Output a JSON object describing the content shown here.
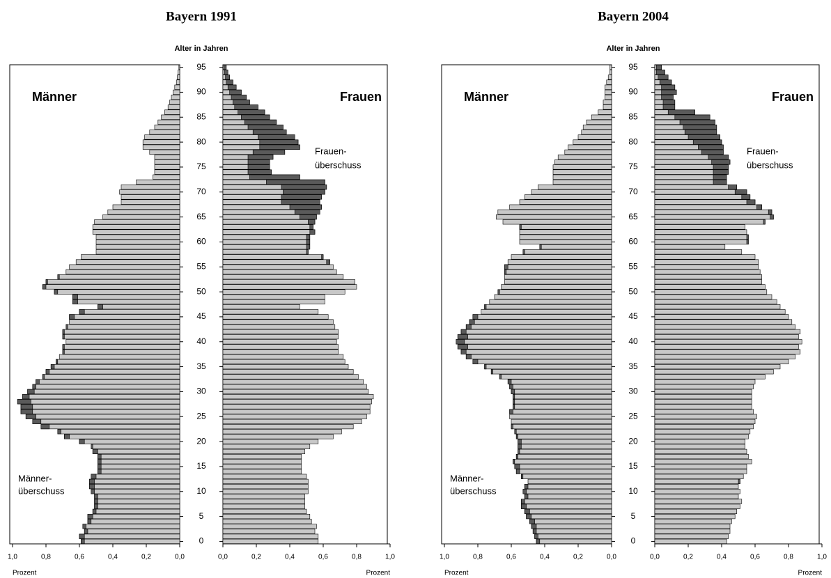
{
  "chart_data": [
    {
      "type": "pyramid",
      "title": "Bayern 1991",
      "ylabel": "Alter in Jahren",
      "xlabel": "Prozent",
      "annotations": {
        "left": [
          "Männer-",
          "überschuss"
        ],
        "right": [
          "Frauen-",
          "überschuss"
        ]
      },
      "xlim": [
        0,
        1
      ],
      "xticks": [
        {
          "value": 0,
          "label": "0,0"
        },
        {
          "value": 0.2,
          "label": "0,2"
        },
        {
          "value": 0.4,
          "label": "0,4"
        },
        {
          "value": 0.6,
          "label": "0,6"
        },
        {
          "value": 0.8,
          "label": "0,8"
        },
        {
          "value": 1,
          "label": "1,0"
        }
      ],
      "ylim": [
        -0.5,
        95.5
      ],
      "yticks": [
        0,
        5,
        10,
        15,
        20,
        25,
        30,
        35,
        40,
        45,
        50,
        55,
        60,
        65,
        70,
        75,
        80,
        85,
        90,
        95
      ],
      "y": [
        0,
        1,
        2,
        3,
        4,
        5,
        6,
        7,
        8,
        9,
        10,
        11,
        12,
        13,
        14,
        15,
        16,
        17,
        18,
        19,
        20,
        21,
        22,
        23,
        24,
        25,
        26,
        27,
        28,
        29,
        30,
        31,
        32,
        33,
        34,
        35,
        36,
        37,
        38,
        39,
        40,
        41,
        42,
        43,
        44,
        45,
        46,
        47,
        48,
        49,
        50,
        51,
        52,
        53,
        54,
        55,
        56,
        57,
        58,
        59,
        60,
        61,
        62,
        63,
        64,
        65,
        66,
        67,
        68,
        69,
        70,
        71,
        72,
        73,
        74,
        75,
        76,
        77,
        78,
        79,
        80,
        81,
        82,
        83,
        84,
        85,
        86,
        87,
        88,
        89,
        90,
        91,
        92,
        93,
        94,
        95
      ],
      "light_color": "#c8c8c8",
      "excess_color": "#5a5a5a",
      "series": [
        {
          "name": "Männer",
          "side": "left",
          "values": [
            0.59,
            0.6,
            0.57,
            0.58,
            0.55,
            0.55,
            0.52,
            0.51,
            0.51,
            0.51,
            0.53,
            0.54,
            0.54,
            0.53,
            0.49,
            0.49,
            0.49,
            0.49,
            0.52,
            0.53,
            0.6,
            0.69,
            0.73,
            0.83,
            0.88,
            0.92,
            0.95,
            0.95,
            0.97,
            0.94,
            0.91,
            0.88,
            0.86,
            0.82,
            0.8,
            0.77,
            0.74,
            0.72,
            0.7,
            0.7,
            0.68,
            0.7,
            0.7,
            0.68,
            0.66,
            0.66,
            0.6,
            0.49,
            0.64,
            0.64,
            0.75,
            0.82,
            0.8,
            0.73,
            0.68,
            0.66,
            0.62,
            0.59,
            0.5,
            0.5,
            0.5,
            0.5,
            0.52,
            0.52,
            0.51,
            0.46,
            0.43,
            0.4,
            0.35,
            0.35,
            0.36,
            0.35,
            0.26,
            0.16,
            0.15,
            0.15,
            0.15,
            0.15,
            0.18,
            0.22,
            0.22,
            0.21,
            0.18,
            0.15,
            0.13,
            0.11,
            0.09,
            0.07,
            0.06,
            0.05,
            0.04,
            0.03,
            0.02,
            0.015,
            0.01,
            0.005
          ]
        },
        {
          "name": "Frauen",
          "side": "right",
          "values": [
            0.57,
            0.57,
            0.55,
            0.56,
            0.53,
            0.52,
            0.5,
            0.49,
            0.49,
            0.49,
            0.51,
            0.51,
            0.51,
            0.5,
            0.47,
            0.47,
            0.47,
            0.47,
            0.49,
            0.52,
            0.57,
            0.66,
            0.71,
            0.78,
            0.83,
            0.86,
            0.88,
            0.88,
            0.89,
            0.9,
            0.87,
            0.86,
            0.84,
            0.81,
            0.78,
            0.75,
            0.73,
            0.72,
            0.69,
            0.69,
            0.68,
            0.69,
            0.69,
            0.67,
            0.66,
            0.63,
            0.57,
            0.46,
            0.61,
            0.61,
            0.73,
            0.8,
            0.79,
            0.72,
            0.68,
            0.66,
            0.64,
            0.6,
            0.51,
            0.52,
            0.52,
            0.52,
            0.55,
            0.54,
            0.55,
            0.56,
            0.58,
            0.59,
            0.58,
            0.59,
            0.61,
            0.62,
            0.61,
            0.46,
            0.29,
            0.28,
            0.28,
            0.3,
            0.37,
            0.46,
            0.45,
            0.43,
            0.38,
            0.36,
            0.32,
            0.28,
            0.25,
            0.21,
            0.16,
            0.14,
            0.11,
            0.08,
            0.06,
            0.04,
            0.03,
            0.02
          ]
        }
      ]
    },
    {
      "type": "pyramid",
      "title": "Bayern 2004",
      "ylabel": "Alter in Jahren",
      "xlabel": "Prozent",
      "annotations": {
        "left": [
          "Männer-",
          "überschuss"
        ],
        "right": [
          "Frauen-",
          "überschuss"
        ]
      },
      "xlim": [
        0,
        1
      ],
      "xticks": [
        {
          "value": 0,
          "label": "0,0"
        },
        {
          "value": 0.2,
          "label": "0,2"
        },
        {
          "value": 0.4,
          "label": "0,4"
        },
        {
          "value": 0.6,
          "label": "0,6"
        },
        {
          "value": 0.8,
          "label": "0,8"
        },
        {
          "value": 1,
          "label": "1,0"
        }
      ],
      "ylim": [
        -0.5,
        95.5
      ],
      "yticks": [
        0,
        5,
        10,
        15,
        20,
        25,
        30,
        35,
        40,
        45,
        50,
        55,
        60,
        65,
        70,
        75,
        80,
        85,
        90,
        95
      ],
      "y": [
        0,
        1,
        2,
        3,
        4,
        5,
        6,
        7,
        8,
        9,
        10,
        11,
        12,
        13,
        14,
        15,
        16,
        17,
        18,
        19,
        20,
        21,
        22,
        23,
        24,
        25,
        26,
        27,
        28,
        29,
        30,
        31,
        32,
        33,
        34,
        35,
        36,
        37,
        38,
        39,
        40,
        41,
        42,
        43,
        44,
        45,
        46,
        47,
        48,
        49,
        50,
        51,
        52,
        53,
        54,
        55,
        56,
        57,
        58,
        59,
        60,
        61,
        62,
        63,
        64,
        65,
        66,
        67,
        68,
        69,
        70,
        71,
        72,
        73,
        74,
        75,
        76,
        77,
        78,
        79,
        80,
        81,
        82,
        83,
        84,
        85,
        86,
        87,
        88,
        89,
        90,
        91,
        92,
        93,
        94,
        95
      ],
      "light_color": "#c8c8c8",
      "excess_color": "#5a5a5a",
      "series": [
        {
          "name": "Männer",
          "side": "left",
          "values": [
            0.45,
            0.46,
            0.47,
            0.48,
            0.49,
            0.51,
            0.52,
            0.54,
            0.54,
            0.52,
            0.53,
            0.52,
            0.5,
            0.54,
            0.57,
            0.58,
            0.59,
            0.57,
            0.56,
            0.56,
            0.56,
            0.57,
            0.58,
            0.6,
            0.6,
            0.61,
            0.61,
            0.59,
            0.59,
            0.59,
            0.6,
            0.61,
            0.62,
            0.67,
            0.72,
            0.76,
            0.83,
            0.87,
            0.9,
            0.92,
            0.93,
            0.92,
            0.9,
            0.87,
            0.85,
            0.83,
            0.78,
            0.76,
            0.73,
            0.7,
            0.68,
            0.66,
            0.64,
            0.64,
            0.64,
            0.64,
            0.62,
            0.6,
            0.53,
            0.43,
            0.55,
            0.55,
            0.55,
            0.55,
            0.65,
            0.69,
            0.68,
            0.61,
            0.55,
            0.52,
            0.48,
            0.44,
            0.35,
            0.35,
            0.35,
            0.35,
            0.34,
            0.32,
            0.28,
            0.26,
            0.23,
            0.2,
            0.18,
            0.17,
            0.15,
            0.12,
            0.08,
            0.05,
            0.05,
            0.04,
            0.04,
            0.04,
            0.03,
            0.02,
            0.01,
            0.01
          ]
        },
        {
          "name": "Frauen",
          "side": "right",
          "values": [
            0.43,
            0.44,
            0.45,
            0.45,
            0.46,
            0.48,
            0.49,
            0.51,
            0.52,
            0.5,
            0.51,
            0.5,
            0.51,
            0.53,
            0.55,
            0.55,
            0.58,
            0.56,
            0.55,
            0.54,
            0.54,
            0.56,
            0.57,
            0.59,
            0.6,
            0.61,
            0.59,
            0.58,
            0.58,
            0.58,
            0.58,
            0.59,
            0.6,
            0.66,
            0.71,
            0.75,
            0.8,
            0.84,
            0.87,
            0.86,
            0.88,
            0.86,
            0.87,
            0.84,
            0.82,
            0.8,
            0.78,
            0.75,
            0.73,
            0.7,
            0.67,
            0.66,
            0.64,
            0.64,
            0.63,
            0.62,
            0.62,
            0.6,
            0.52,
            0.42,
            0.56,
            0.56,
            0.55,
            0.54,
            0.66,
            0.71,
            0.7,
            0.64,
            0.6,
            0.57,
            0.55,
            0.49,
            0.43,
            0.43,
            0.44,
            0.44,
            0.45,
            0.44,
            0.41,
            0.41,
            0.4,
            0.39,
            0.37,
            0.37,
            0.36,
            0.33,
            0.24,
            0.12,
            0.12,
            0.11,
            0.13,
            0.12,
            0.1,
            0.08,
            0.06,
            0.04
          ]
        }
      ]
    }
  ]
}
